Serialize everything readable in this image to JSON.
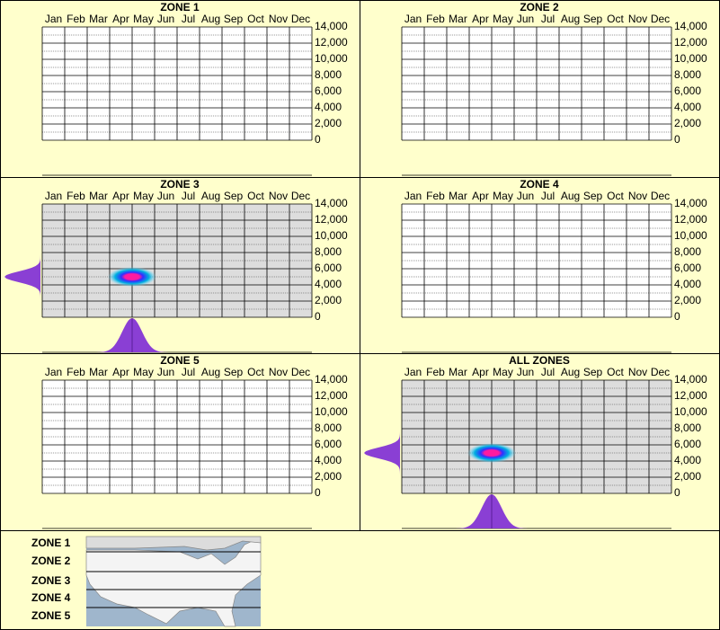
{
  "chart_data": [
    {
      "type": "heatmap",
      "title": "ZONE 1",
      "categories": [
        "Jan",
        "Feb",
        "Mar",
        "Apr",
        "May",
        "Jun",
        "Jul",
        "Aug",
        "Sep",
        "Oct",
        "Nov",
        "Dec"
      ],
      "ylim": [
        0,
        14000
      ],
      "yticks": [
        0,
        {
          "value": 2000,
          "label": "2,000"
        },
        {
          "value": 4000,
          "label": "4,000"
        },
        {
          "value": 6000,
          "label": "6,000"
        },
        {
          "value": 8000,
          "label": "8,000"
        },
        {
          "value": 10000,
          "label": "10,000"
        },
        {
          "value": 12000,
          "label": "12,000"
        },
        {
          "value": 14000,
          "label": "14,000"
        }
      ]
    },
    {
      "type": "heatmap",
      "title": "ZONE 2",
      "categories": [
        "Jan",
        "Feb",
        "Mar",
        "Apr",
        "May",
        "Jun",
        "Jul",
        "Aug",
        "Sep",
        "Oct",
        "Nov",
        "Dec"
      ],
      "ylim": [
        0,
        14000
      ],
      "yticks": [
        0,
        {
          "value": 2000,
          "label": "2,000"
        },
        {
          "value": 4000,
          "label": "4,000"
        },
        {
          "value": 6000,
          "label": "6,000"
        },
        {
          "value": 8000,
          "label": "8,000"
        },
        {
          "value": 10000,
          "label": "10,000"
        },
        {
          "value": 12000,
          "label": "12,000"
        },
        {
          "value": 14000,
          "label": "14,000"
        }
      ]
    },
    {
      "type": "heatmap",
      "title": "ZONE 3",
      "categories": [
        "Jan",
        "Feb",
        "Mar",
        "Apr",
        "May",
        "Jun",
        "Jul",
        "Aug",
        "Sep",
        "Oct",
        "Nov",
        "Dec"
      ],
      "ylim": [
        0,
        14000
      ],
      "yticks": [
        0,
        {
          "value": 2000,
          "label": "2,000"
        },
        {
          "value": 4000,
          "label": "4,000"
        },
        {
          "value": 6000,
          "label": "6,000"
        },
        {
          "value": 8000,
          "label": "8,000"
        },
        {
          "value": 10000,
          "label": "10,000"
        },
        {
          "value": 12000,
          "label": "12,000"
        },
        {
          "value": 14000,
          "label": "14,000"
        }
      ],
      "peak": {
        "month": 4,
        "elevation": 5000
      }
    },
    {
      "type": "heatmap",
      "title": "ZONE 4",
      "categories": [
        "Jan",
        "Feb",
        "Mar",
        "Apr",
        "May",
        "Jun",
        "Jul",
        "Aug",
        "Sep",
        "Oct",
        "Nov",
        "Dec"
      ],
      "ylim": [
        0,
        14000
      ],
      "yticks": [
        0,
        {
          "value": 2000,
          "label": "2,000"
        },
        {
          "value": 4000,
          "label": "4,000"
        },
        {
          "value": 6000,
          "label": "6,000"
        },
        {
          "value": 8000,
          "label": "8,000"
        },
        {
          "value": 10000,
          "label": "10,000"
        },
        {
          "value": 12000,
          "label": "12,000"
        },
        {
          "value": 14000,
          "label": "14,000"
        }
      ]
    },
    {
      "type": "heatmap",
      "title": "ZONE 5",
      "categories": [
        "Jan",
        "Feb",
        "Mar",
        "Apr",
        "May",
        "Jun",
        "Jul",
        "Aug",
        "Sep",
        "Oct",
        "Nov",
        "Dec"
      ],
      "ylim": [
        0,
        14000
      ],
      "yticks": [
        0,
        {
          "value": 2000,
          "label": "2,000"
        },
        {
          "value": 4000,
          "label": "4,000"
        },
        {
          "value": 6000,
          "label": "6,000"
        },
        {
          "value": 8000,
          "label": "8,000"
        },
        {
          "value": 10000,
          "label": "10,000"
        },
        {
          "value": 12000,
          "label": "12,000"
        },
        {
          "value": 14000,
          "label": "14,000"
        }
      ]
    },
    {
      "type": "heatmap",
      "title": "ALL ZONES",
      "categories": [
        "Jan",
        "Feb",
        "Mar",
        "Apr",
        "May",
        "Jun",
        "Jul",
        "Aug",
        "Sep",
        "Oct",
        "Nov",
        "Dec"
      ],
      "ylim": [
        0,
        14000
      ],
      "yticks": [
        0,
        {
          "value": 2000,
          "label": "2,000"
        },
        {
          "value": 4000,
          "label": "4,000"
        },
        {
          "value": 6000,
          "label": "6,000"
        },
        {
          "value": 8000,
          "label": "8,000"
        },
        {
          "value": 10000,
          "label": "10,000"
        },
        {
          "value": 12000,
          "label": "12,000"
        },
        {
          "value": 14000,
          "label": "14,000"
        }
      ],
      "peak": {
        "month": 4,
        "elevation": 5000
      }
    }
  ],
  "legend": {
    "zones": [
      "ZONE 1",
      "ZONE 2",
      "ZONE 3",
      "ZONE 4",
      "ZONE 5"
    ]
  }
}
